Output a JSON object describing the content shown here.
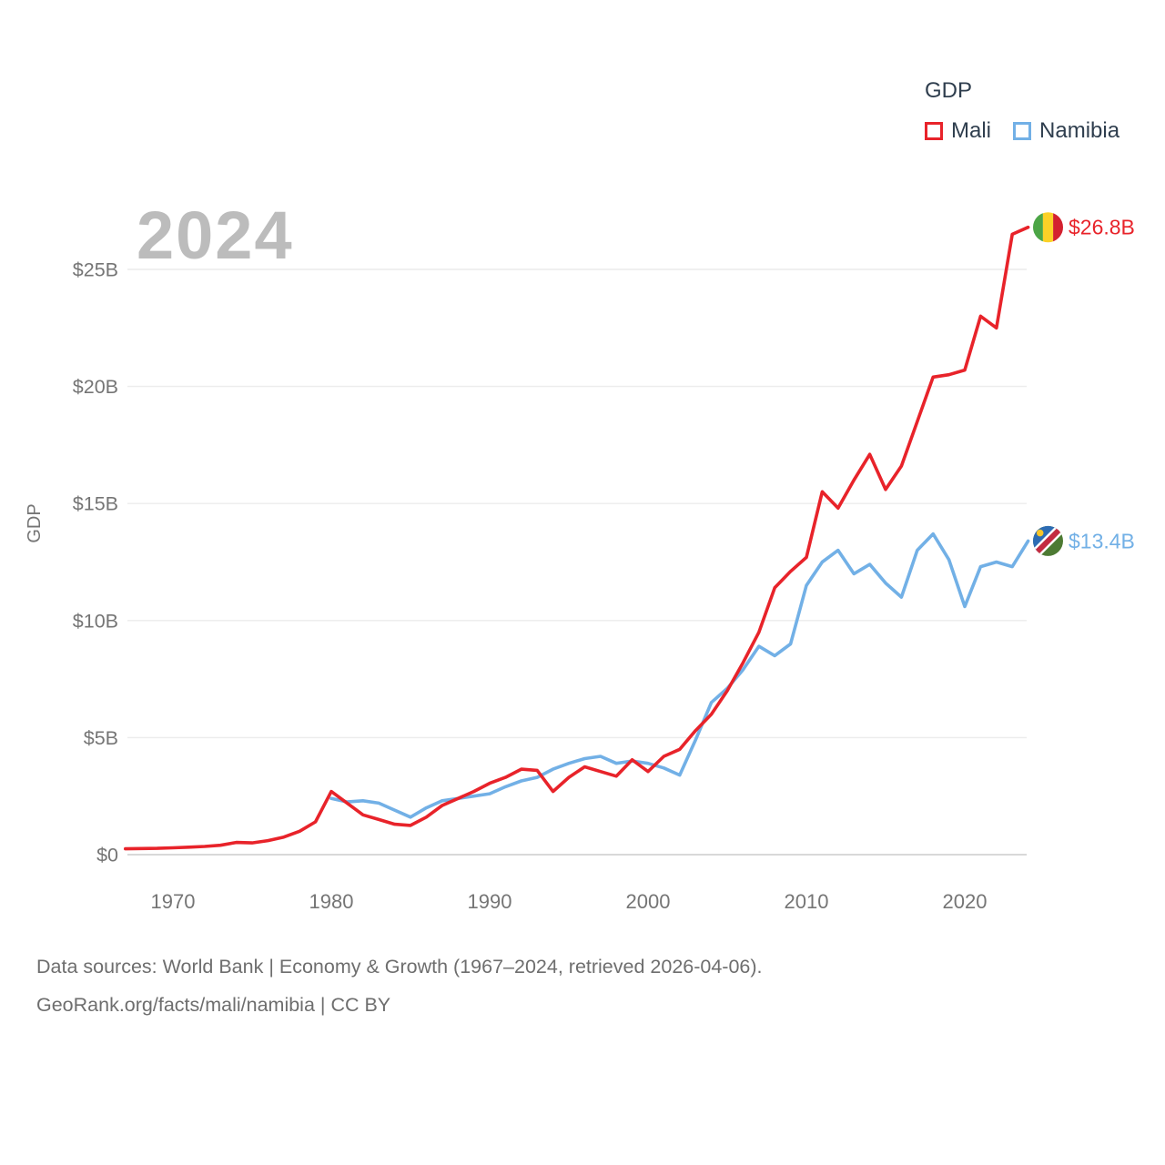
{
  "page": {
    "background": "#ffffff"
  },
  "legend": {
    "title": "GDP",
    "items": [
      {
        "label": "Mali",
        "color": "#e8232a"
      },
      {
        "label": "Namibia",
        "color": "#72b0e6"
      }
    ]
  },
  "watermark": "2024",
  "footer": {
    "line1": "Data sources: World Bank | Economy & Growth (1967–2024, retrieved 2026-04-06).",
    "line2": "GeoRank.org/facts/mali/namibia | CC BY"
  },
  "chart_data": {
    "type": "line",
    "title": "GDP",
    "xlabel": "",
    "ylabel": "GDP",
    "grid": true,
    "legend_position": "top-right",
    "xlim": [
      1967,
      2024
    ],
    "ylim": [
      0,
      27
    ],
    "x_axis": {
      "ticks": [
        {
          "value": 1970,
          "label": "1970"
        },
        {
          "value": 1980,
          "label": "1980"
        },
        {
          "value": 1990,
          "label": "1990"
        },
        {
          "value": 2000,
          "label": "2000"
        },
        {
          "value": 2010,
          "label": "2010"
        },
        {
          "value": 2020,
          "label": "2020"
        }
      ]
    },
    "y_axis": {
      "ticks": [
        {
          "value": 0,
          "label": "$0"
        },
        {
          "value": 5,
          "label": "$5B"
        },
        {
          "value": 10,
          "label": "$10B"
        },
        {
          "value": 15,
          "label": "$15B"
        },
        {
          "value": 20,
          "label": "$20B"
        },
        {
          "value": 25,
          "label": "$25B"
        }
      ]
    },
    "series": [
      {
        "name": "Mali",
        "color": "#e8232a",
        "flag": "mali",
        "end_label": "$26.8B",
        "years": [
          1967,
          1968,
          1969,
          1970,
          1971,
          1972,
          1973,
          1974,
          1975,
          1976,
          1977,
          1978,
          1979,
          1980,
          1981,
          1982,
          1983,
          1984,
          1985,
          1986,
          1987,
          1988,
          1989,
          1990,
          1991,
          1992,
          1993,
          1994,
          1995,
          1996,
          1997,
          1998,
          1999,
          2000,
          2001,
          2002,
          2003,
          2004,
          2005,
          2006,
          2007,
          2008,
          2009,
          2010,
          2011,
          2012,
          2013,
          2014,
          2015,
          2016,
          2017,
          2018,
          2019,
          2020,
          2021,
          2022,
          2023,
          2024
        ],
        "values": [
          0.25,
          0.26,
          0.27,
          0.29,
          0.32,
          0.35,
          0.4,
          0.52,
          0.5,
          0.6,
          0.75,
          1.0,
          1.4,
          2.7,
          2.2,
          1.7,
          1.5,
          1.3,
          1.25,
          1.6,
          2.1,
          2.4,
          2.7,
          3.05,
          3.3,
          3.65,
          3.6,
          2.7,
          3.3,
          3.75,
          3.55,
          3.35,
          4.05,
          3.55,
          4.2,
          4.5,
          5.3,
          6.0,
          7.0,
          8.2,
          9.5,
          11.4,
          12.1,
          12.7,
          15.5,
          14.8,
          16.0,
          17.1,
          15.6,
          16.6,
          18.5,
          20.4,
          20.5,
          20.7,
          23.0,
          22.5,
          26.5,
          26.8
        ]
      },
      {
        "name": "Namibia",
        "color": "#72b0e6",
        "flag": "namibia",
        "end_label": "$13.4B",
        "years": [
          1980,
          1981,
          1982,
          1983,
          1984,
          1985,
          1986,
          1987,
          1988,
          1989,
          1990,
          1991,
          1992,
          1993,
          1994,
          1995,
          1996,
          1997,
          1998,
          1999,
          2000,
          2001,
          2002,
          2003,
          2004,
          2005,
          2006,
          2007,
          2008,
          2009,
          2010,
          2011,
          2012,
          2013,
          2014,
          2015,
          2016,
          2017,
          2018,
          2019,
          2020,
          2021,
          2022,
          2023,
          2024
        ],
        "values": [
          2.4,
          2.25,
          2.3,
          2.2,
          1.9,
          1.6,
          2.0,
          2.3,
          2.4,
          2.5,
          2.6,
          2.9,
          3.15,
          3.3,
          3.65,
          3.9,
          4.1,
          4.2,
          3.9,
          4.0,
          3.9,
          3.7,
          3.4,
          4.9,
          6.5,
          7.1,
          7.9,
          8.9,
          8.5,
          9.0,
          11.5,
          12.5,
          13.0,
          12.0,
          12.4,
          11.6,
          11.0,
          13.0,
          13.7,
          12.6,
          10.6,
          12.3,
          12.5,
          12.3,
          13.4
        ]
      }
    ]
  }
}
